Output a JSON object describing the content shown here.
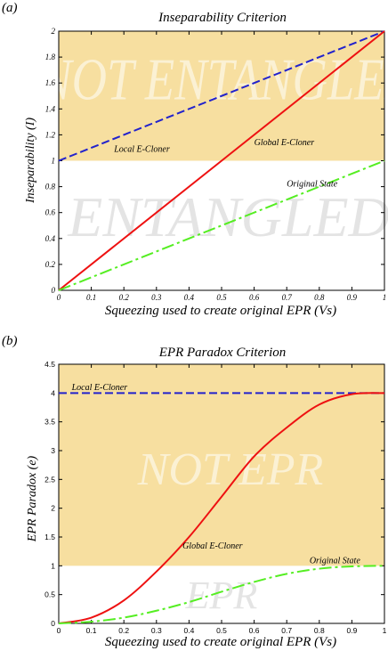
{
  "panels": [
    {
      "label": "(a)",
      "watermark_top": "NOT ENTANGLED",
      "watermark_bottom": "ENTANGLED"
    },
    {
      "label": "(b)",
      "watermark_top": "NOT EPR",
      "watermark_bottom": "EPR"
    }
  ],
  "chart_data": [
    {
      "type": "line",
      "title": "Inseparability Criterion",
      "xlabel": "Squeezing used to create original EPR (Vs)",
      "ylabel": "Inseparability (I)",
      "xlim": [
        0,
        1
      ],
      "ylim": [
        0,
        2
      ],
      "xticks": [
        0,
        0.1,
        0.2,
        0.3,
        0.4,
        0.5,
        0.6,
        0.7,
        0.8,
        0.9,
        1
      ],
      "xtick_labels": [
        "0",
        "0.1",
        "0.2",
        "0.3",
        "0.4",
        "0.5",
        "0.6",
        "0.7",
        "0.8",
        "0.9",
        "1"
      ],
      "yticks": [
        0,
        0.2,
        0.4,
        0.6,
        0.8,
        1,
        1.2,
        1.4,
        1.6,
        1.8,
        2
      ],
      "ytick_labels": [
        "0",
        "0.2",
        "0.4",
        "0.6",
        "0.8",
        "1",
        "1.2",
        "1.4",
        "1.6",
        "1.8",
        "2"
      ],
      "shaded_region": {
        "y_from": 1,
        "y_to": 2,
        "color": "#f7dfa0"
      },
      "series": [
        {
          "name": "Local E-Cloner",
          "color": "#2222cc",
          "dash": "dash",
          "x": [
            0,
            1
          ],
          "y": [
            1,
            2
          ],
          "label_at": [
            0.17,
            1.07
          ]
        },
        {
          "name": "Global E-Cloner",
          "color": "#ee1111",
          "dash": "solid",
          "x": [
            0,
            1
          ],
          "y": [
            0,
            2
          ],
          "label_at": [
            0.6,
            1.12
          ]
        },
        {
          "name": "Original State",
          "color": "#55ee22",
          "dash": "dashdot",
          "x": [
            0,
            1
          ],
          "y": [
            0,
            1
          ],
          "label_at": [
            0.7,
            0.8
          ]
        }
      ]
    },
    {
      "type": "line",
      "title": "EPR Paradox Criterion",
      "xlabel": "Squeezing used to create original EPR (Vs)",
      "ylabel": "EPR Paradox (e)",
      "xlim": [
        0,
        1
      ],
      "ylim": [
        0,
        4.5
      ],
      "xticks": [
        0,
        0.1,
        0.2,
        0.3,
        0.4,
        0.5,
        0.6,
        0.7,
        0.8,
        0.9,
        1
      ],
      "xtick_labels": [
        "0",
        "0.1",
        "0.2",
        "0.3",
        "0.4",
        "0.5",
        "0.6",
        "0.7",
        "0.8",
        "0.9",
        "1"
      ],
      "yticks": [
        0,
        0.5,
        1,
        1.5,
        2,
        2.5,
        3,
        3.5,
        4,
        4.5
      ],
      "ytick_labels": [
        "0",
        "0.5",
        "1",
        "1.5",
        "2",
        "2.5",
        "3",
        "3.5",
        "4",
        "4.5"
      ],
      "shaded_region": {
        "y_from": 1,
        "y_to": 4.5,
        "color": "#f7dfa0"
      },
      "series": [
        {
          "name": "Local E-Cloner",
          "color": "#2222cc",
          "dash": "dash",
          "x": [
            0,
            1
          ],
          "y": [
            4,
            4
          ],
          "label_at": [
            0.04,
            4.05
          ]
        },
        {
          "name": "Global E-Cloner",
          "color": "#ee1111",
          "dash": "solid",
          "x": [
            0,
            0.1,
            0.2,
            0.3,
            0.4,
            0.5,
            0.6,
            0.7,
            0.8,
            0.9,
            1
          ],
          "y": [
            0,
            0.1,
            0.4,
            0.9,
            1.5,
            2.2,
            2.9,
            3.4,
            3.8,
            3.98,
            4
          ],
          "label_at": [
            0.38,
            1.3
          ]
        },
        {
          "name": "Original State",
          "color": "#55ee22",
          "dash": "dashdot",
          "x": [
            0,
            0.1,
            0.2,
            0.3,
            0.4,
            0.5,
            0.6,
            0.7,
            0.8,
            0.9,
            1
          ],
          "y": [
            0,
            0.03,
            0.1,
            0.22,
            0.37,
            0.55,
            0.72,
            0.86,
            0.95,
            0.99,
            1
          ],
          "label_at": [
            0.77,
            1.04
          ]
        }
      ]
    }
  ]
}
